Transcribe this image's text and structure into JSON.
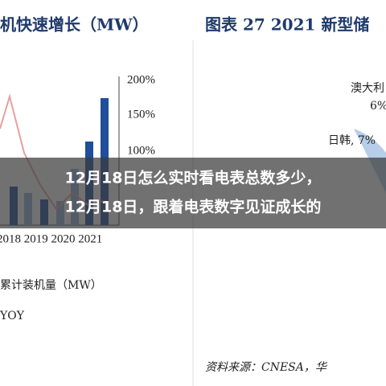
{
  "left_chart": {
    "title": "机快速增长（MW）",
    "axis_labels": [
      "200%",
      "150%",
      "100%"
    ],
    "x_labels": "2018 2019 2020 2021",
    "legend": [
      "累计装机量（MW）",
      "YOY"
    ]
  },
  "right_chart": {
    "title": "图表 27   2021 新型储",
    "labels": [
      "澳大利",
      "6%",
      "日韩, 7%"
    ],
    "source": "资料来源：CNESA，华"
  },
  "overlay": {
    "lines": [
      "12月18日怎么实时看电表总数多少，",
      "12月18日，跟着电表数字见证成长的"
    ]
  }
}
